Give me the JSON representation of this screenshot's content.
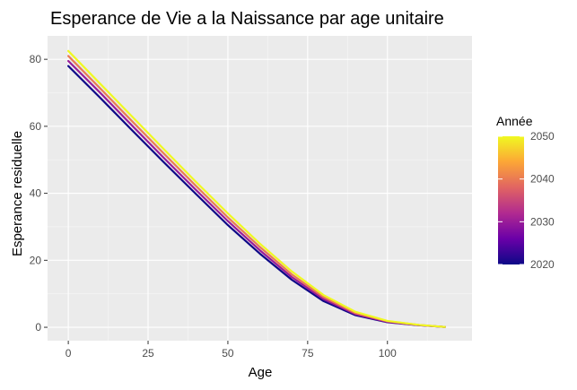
{
  "chart_data": {
    "type": "line",
    "title": "Esperance de Vie a la Naissance par age unitaire",
    "xlabel": "Age",
    "ylabel": "Esperance residuelle",
    "xlim": [
      -6.5,
      126.5
    ],
    "ylim": [
      -4,
      87
    ],
    "x_ticks": [
      0,
      25,
      50,
      75,
      100
    ],
    "x_tick_labels": [
      "0",
      "25",
      "50",
      "75",
      "100"
    ],
    "y_ticks": [
      0,
      20,
      40,
      60,
      80
    ],
    "y_tick_labels": [
      "0",
      "20",
      "40",
      "60",
      "80"
    ],
    "grid": true,
    "background": "#ebebeb",
    "legend": {
      "title": "Année",
      "position": "right",
      "type": "colorbar",
      "range": [
        2020,
        2050
      ],
      "ticks": [
        2020,
        2030,
        2040,
        2050
      ],
      "tick_labels": [
        "2020",
        "2030",
        "2040",
        "2050"
      ],
      "palette": [
        "#0d0887",
        "#6a00a8",
        "#b12a90",
        "#e16462",
        "#fca636",
        "#f0f921"
      ]
    },
    "series_summary": "One line per year 2020-2050, residual life expectancy by age 0-120",
    "series": [
      {
        "name": "2020",
        "x": [
          0,
          10,
          20,
          30,
          40,
          50,
          60,
          70,
          80,
          90,
          100,
          110,
          118
        ],
        "y": [
          78.0,
          68.5,
          58.8,
          49.2,
          39.8,
          30.5,
          22.0,
          14.2,
          7.8,
          3.6,
          1.5,
          0.6,
          0.1
        ]
      },
      {
        "name": "2030",
        "x": [
          0,
          10,
          20,
          30,
          40,
          50,
          60,
          70,
          80,
          90,
          100,
          110,
          118
        ],
        "y": [
          79.5,
          70.0,
          60.2,
          50.5,
          41.0,
          31.7,
          23.0,
          15.0,
          8.4,
          3.9,
          1.6,
          0.6,
          0.1
        ]
      },
      {
        "name": "2040",
        "x": [
          0,
          10,
          20,
          30,
          40,
          50,
          60,
          70,
          80,
          90,
          100,
          110,
          118
        ],
        "y": [
          81.0,
          71.3,
          61.5,
          51.8,
          42.2,
          32.8,
          24.0,
          15.8,
          9.0,
          4.2,
          1.8,
          0.7,
          0.1
        ]
      },
      {
        "name": "2050",
        "x": [
          0,
          10,
          20,
          30,
          40,
          50,
          60,
          70,
          80,
          90,
          100,
          110,
          118
        ],
        "y": [
          82.5,
          72.7,
          62.9,
          53.1,
          43.4,
          34.0,
          25.0,
          16.7,
          9.6,
          4.6,
          1.9,
          0.7,
          0.1
        ]
      }
    ]
  }
}
